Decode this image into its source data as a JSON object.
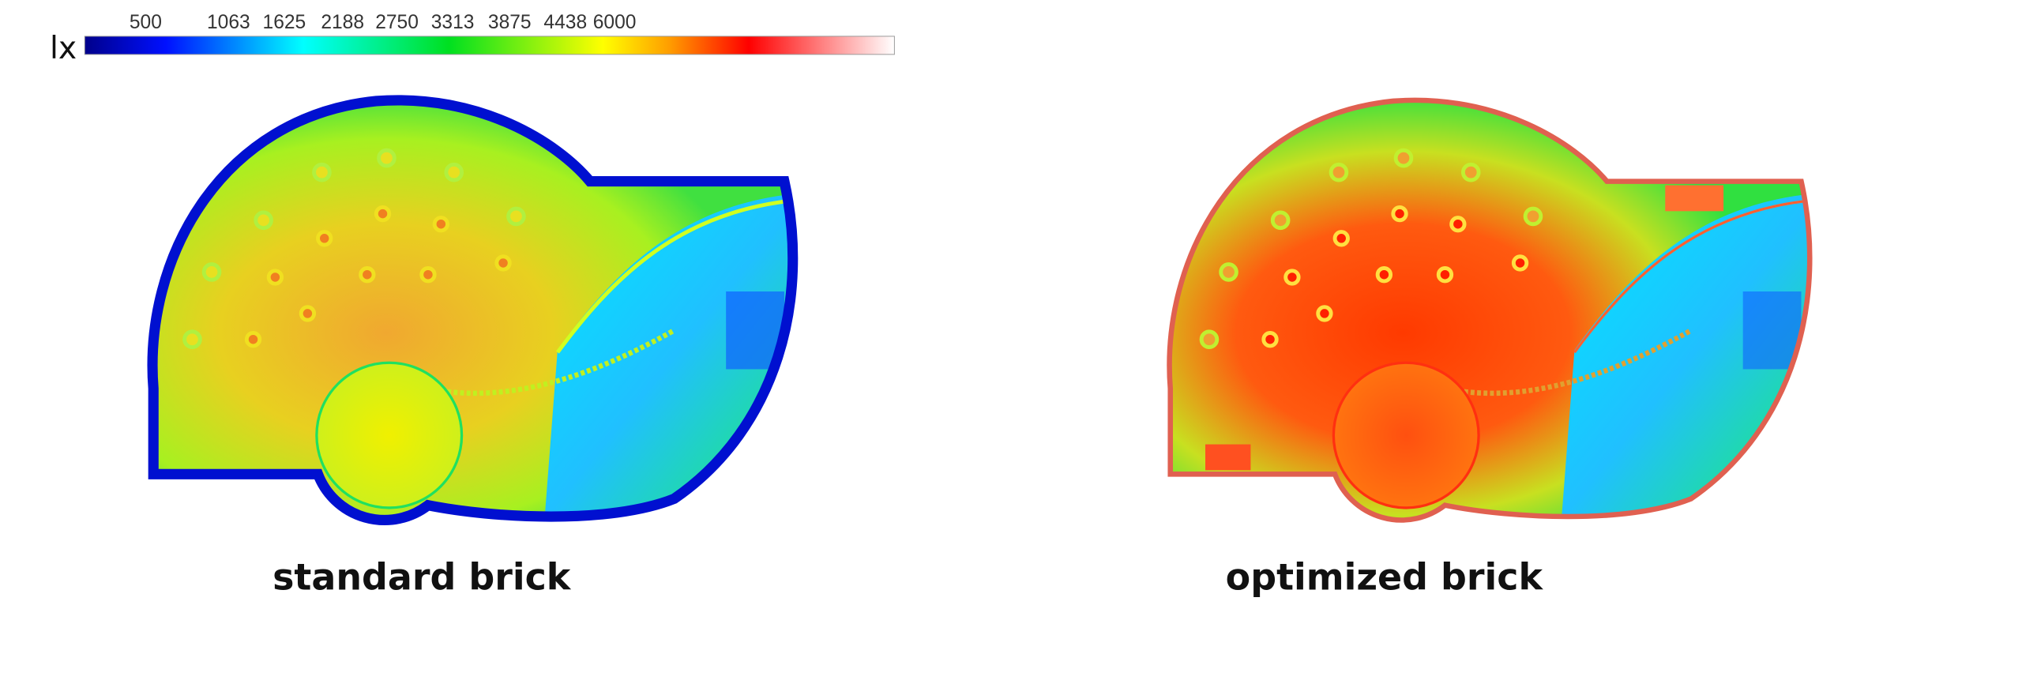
{
  "legend": {
    "unit": "lx",
    "ticks": [
      "500",
      "1063",
      "1625",
      "2188",
      "2750",
      "3313",
      "3875",
      "4438",
      "6000"
    ],
    "colors": [
      "#00008b",
      "#0000ff",
      "#00ffff",
      "#00ff00",
      "#ffff00",
      "#ff8c00",
      "#ff0000",
      "#ffffff"
    ]
  },
  "panels": [
    {
      "caption": "standard brick",
      "wall_color": "#0010d0",
      "peak_color": "#f0a020"
    },
    {
      "caption": "optimized brick",
      "wall_color": "#e06050",
      "peak_color": "#ff3000"
    }
  ]
}
